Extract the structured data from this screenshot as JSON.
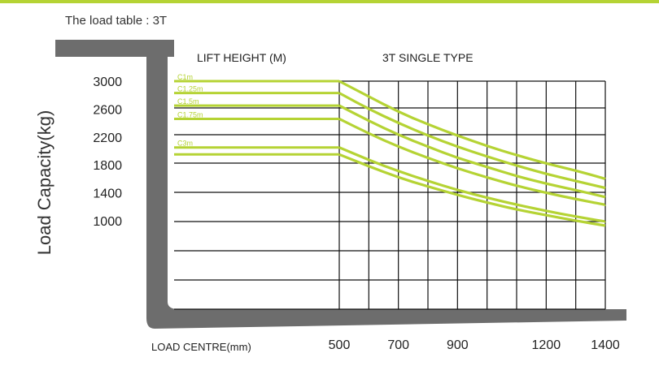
{
  "table_title": "The load table : 3T",
  "lift_height_label": "LIFT HEIGHT (M)",
  "model_label": "3T SINGLE TYPE",
  "colors": {
    "accent": "#b5d334",
    "curve": "#b5d334",
    "fork": "#6d6d6d",
    "grid": "#111111"
  },
  "chart_data": {
    "type": "line",
    "title": "",
    "xlabel": "LOAD CENTRE(mm)",
    "ylabel": "Load Capacity(kg)",
    "x_ticks": [
      "500",
      "700",
      "900",
      "1200",
      "1400"
    ],
    "y_ticks": [
      "3000",
      "2600",
      "2200",
      "1800",
      "1400",
      "1000"
    ],
    "xlim": [
      500,
      1400
    ],
    "ylim": [
      0,
      3000
    ],
    "grid": true,
    "series": [
      {
        "name": "C1m",
        "x": [
          500,
          600,
          700,
          800,
          900,
          1000,
          1100,
          1200,
          1300,
          1400
        ],
        "values": [
          3000,
          2780,
          2560,
          2380,
          2220,
          2070,
          1940,
          1820,
          1720,
          1600
        ]
      },
      {
        "name": "C1.25m",
        "x": [
          500,
          600,
          700,
          800,
          900,
          1000,
          1100,
          1200,
          1300,
          1400
        ],
        "values": [
          2830,
          2600,
          2400,
          2220,
          2060,
          1920,
          1790,
          1670,
          1570,
          1470
        ]
      },
      {
        "name": "C1.5m",
        "x": [
          500,
          600,
          700,
          800,
          900,
          1000,
          1100,
          1200,
          1300,
          1400
        ],
        "values": [
          2650,
          2430,
          2230,
          2060,
          1900,
          1770,
          1640,
          1530,
          1440,
          1340
        ]
      },
      {
        "name": "C1.75m",
        "x": [
          500,
          600,
          700,
          800,
          900,
          1000,
          1100,
          1200,
          1300,
          1400
        ],
        "values": [
          2460,
          2250,
          2060,
          1900,
          1750,
          1620,
          1500,
          1400,
          1310,
          1230
        ]
      },
      {
        "name": "C3m",
        "x": [
          500,
          600,
          700,
          800,
          900,
          1000,
          1100,
          1200,
          1300,
          1400
        ],
        "values": [
          2050,
          1870,
          1710,
          1570,
          1440,
          1330,
          1230,
          1140,
          1060,
          990
        ]
      },
      {
        "name": "",
        "x": [
          500,
          600,
          700,
          800,
          900,
          1000,
          1100,
          1200,
          1300,
          1400
        ],
        "values": [
          1950,
          1780,
          1620,
          1490,
          1370,
          1260,
          1160,
          1080,
          1000,
          930
        ]
      }
    ]
  }
}
